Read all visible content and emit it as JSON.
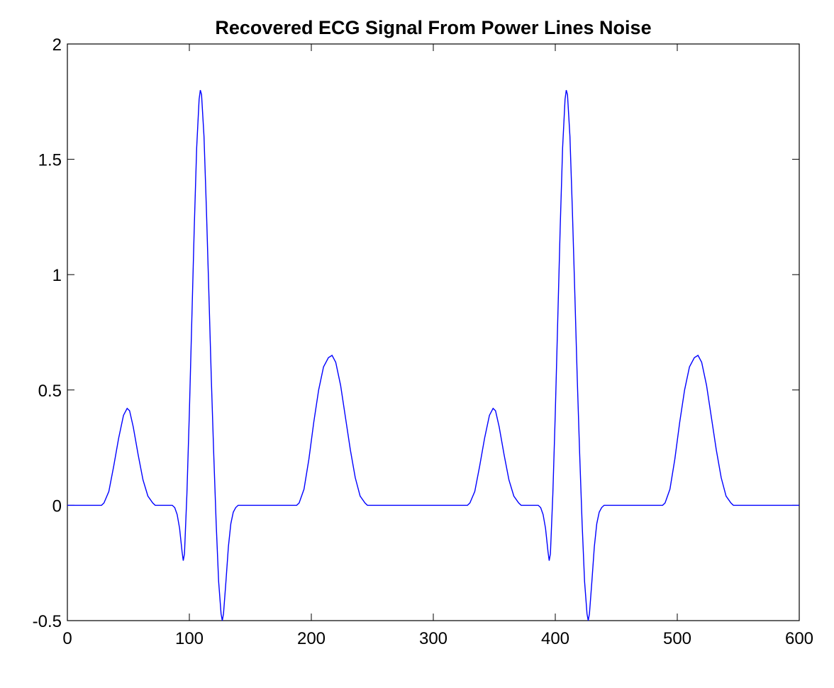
{
  "chart_data": {
    "type": "line",
    "title": "Recovered ECG Signal From Power Lines Noise",
    "xlabel": "",
    "ylabel": "",
    "xlim": [
      0,
      600
    ],
    "ylim": [
      -0.5,
      2
    ],
    "xticks": [
      0,
      100,
      200,
      300,
      400,
      500,
      600
    ],
    "xtick_labels": [
      "0",
      "100",
      "200",
      "300",
      "400",
      "500",
      "600"
    ],
    "yticks": [
      -0.5,
      0,
      0.5,
      1,
      1.5,
      2
    ],
    "ytick_labels": [
      "-0.5",
      "0",
      "0.5",
      "1",
      "1.5",
      "2"
    ],
    "grid": false,
    "legend": "none",
    "line_color": "#0000ff",
    "series": [
      {
        "x": [
          0,
          28,
          30,
          34,
          38,
          42,
          46,
          49,
          51,
          54,
          58,
          62,
          66,
          70,
          72,
          86,
          88,
          90,
          92,
          94,
          95,
          96,
          98,
          100,
          102,
          104,
          106,
          108,
          109,
          110,
          112,
          114,
          116,
          118,
          120,
          122,
          124,
          126,
          127,
          128,
          130,
          132,
          134,
          136,
          138,
          140,
          188,
          190,
          194,
          198,
          202,
          206,
          210,
          214,
          217,
          220,
          224,
          228,
          232,
          236,
          240,
          244,
          246,
          328,
          330,
          334,
          338,
          342,
          346,
          349,
          351,
          354,
          358,
          362,
          366,
          370,
          372,
          386,
          388,
          390,
          392,
          394,
          395,
          396,
          398,
          400,
          402,
          404,
          406,
          408,
          409,
          410,
          412,
          414,
          416,
          418,
          420,
          422,
          424,
          426,
          427,
          428,
          430,
          432,
          434,
          436,
          438,
          440,
          488,
          490,
          494,
          498,
          502,
          506,
          510,
          514,
          517,
          520,
          524,
          528,
          532,
          536,
          540,
          544,
          546,
          600
        ],
        "y": [
          0,
          0,
          0.01,
          0.06,
          0.17,
          0.29,
          0.39,
          0.42,
          0.41,
          0.34,
          0.22,
          0.11,
          0.04,
          0.01,
          0,
          0,
          -0.01,
          -0.04,
          -0.1,
          -0.2,
          -0.24,
          -0.21,
          0.05,
          0.4,
          0.8,
          1.2,
          1.55,
          1.76,
          1.8,
          1.78,
          1.6,
          1.28,
          0.92,
          0.55,
          0.22,
          -0.08,
          -0.33,
          -0.47,
          -0.5,
          -0.47,
          -0.33,
          -0.18,
          -0.08,
          -0.03,
          -0.01,
          0,
          0,
          0.01,
          0.07,
          0.2,
          0.36,
          0.5,
          0.6,
          0.64,
          0.65,
          0.62,
          0.52,
          0.38,
          0.24,
          0.12,
          0.04,
          0.01,
          0,
          0,
          0.01,
          0.06,
          0.17,
          0.29,
          0.39,
          0.42,
          0.41,
          0.34,
          0.22,
          0.11,
          0.04,
          0.01,
          0,
          0,
          -0.01,
          -0.04,
          -0.1,
          -0.2,
          -0.24,
          -0.21,
          0.05,
          0.4,
          0.8,
          1.2,
          1.55,
          1.76,
          1.8,
          1.78,
          1.6,
          1.28,
          0.92,
          0.55,
          0.22,
          -0.08,
          -0.33,
          -0.47,
          -0.5,
          -0.47,
          -0.33,
          -0.18,
          -0.08,
          -0.03,
          -0.01,
          0,
          0,
          0.01,
          0.07,
          0.2,
          0.36,
          0.5,
          0.6,
          0.64,
          0.65,
          0.62,
          0.52,
          0.38,
          0.24,
          0.12,
          0.04,
          0.01,
          0,
          0
        ]
      }
    ]
  }
}
